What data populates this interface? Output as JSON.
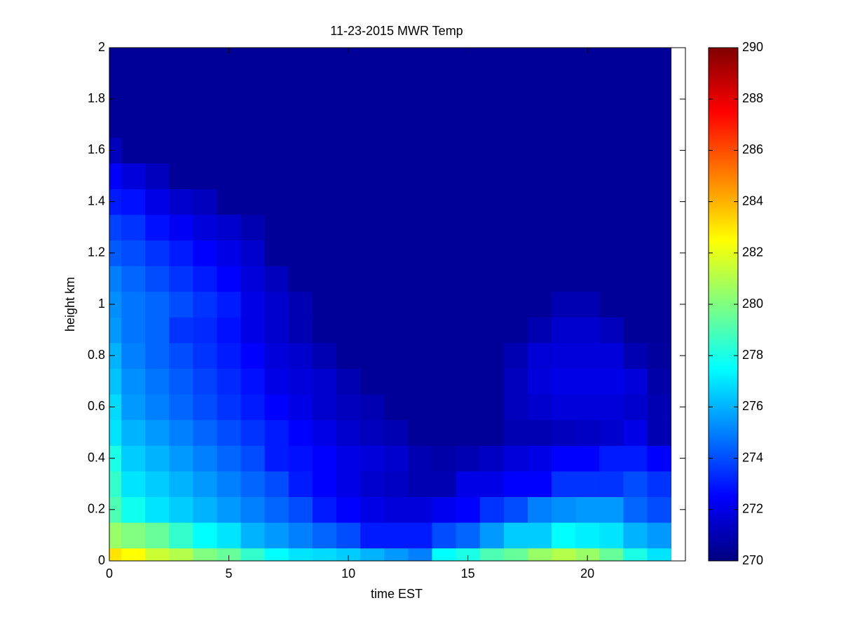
{
  "chart_data": {
    "type": "heatmap",
    "title": "11-23-2015 MWR Temp",
    "x_label": "time EST",
    "y_label": "height km",
    "colormap": "jet",
    "x": [
      0,
      1,
      2,
      3,
      4,
      5,
      6,
      7,
      8,
      9,
      10,
      11,
      12,
      13,
      14,
      15,
      16,
      17,
      18,
      19,
      20,
      21,
      22,
      23
    ],
    "y": [
      0,
      0.1,
      0.2,
      0.3,
      0.4,
      0.5,
      0.6,
      0.7,
      0.8,
      0.9,
      1.0,
      1.1,
      1.2,
      1.3,
      1.4,
      1.5,
      1.6,
      1.7,
      1.8,
      1.9,
      2.0
    ],
    "z": [
      [
        283,
        282.5,
        281.5,
        281,
        280,
        279.5,
        278.5,
        277.5,
        277,
        276.8,
        276.5,
        276,
        275.5,
        275,
        277.5,
        278,
        279,
        279.5,
        280.5,
        281,
        280.5,
        279.5,
        278,
        277
      ],
      [
        280.5,
        280,
        279.5,
        278.5,
        277.5,
        277,
        276,
        275.5,
        275,
        274.5,
        274,
        273,
        273,
        273,
        274,
        274.5,
        275.5,
        276.5,
        276.5,
        277.5,
        277.2,
        277,
        276,
        275.5
      ],
      [
        279,
        277.8,
        277,
        276.5,
        276,
        275.5,
        275,
        274.5,
        274,
        273,
        272.5,
        272,
        271.8,
        271.8,
        272.2,
        272.5,
        273.5,
        274,
        275,
        275.3,
        275.5,
        275.5,
        274.5,
        274
      ],
      [
        278.5,
        277,
        276.5,
        276,
        275.5,
        275,
        274.5,
        274,
        273,
        272.5,
        272,
        271.5,
        271.3,
        271,
        271,
        272,
        272,
        272.5,
        272.5,
        273.5,
        273.5,
        273.5,
        274,
        273.5
      ],
      [
        278,
        276.5,
        276,
        275.5,
        275,
        274.5,
        274,
        273,
        272.8,
        272.5,
        272,
        271.8,
        271.5,
        271,
        270.8,
        271,
        271.3,
        271.8,
        272,
        272.5,
        272.5,
        273,
        273,
        272.5
      ],
      [
        277,
        276,
        275.5,
        275,
        274.5,
        274,
        273.5,
        273,
        272.5,
        272,
        271.5,
        271.2,
        271,
        270.5,
        270.5,
        270.5,
        270.5,
        271,
        271,
        271.2,
        271.3,
        271.5,
        272,
        271
      ],
      [
        276.8,
        275.5,
        275,
        274.5,
        274,
        273.5,
        273,
        272.5,
        272,
        271.5,
        271.2,
        271,
        270.5,
        270.5,
        270.5,
        270.5,
        270.5,
        271.2,
        271.5,
        271.8,
        271.8,
        271.8,
        271.5,
        271
      ],
      [
        276.3,
        275.3,
        274.8,
        274.3,
        273.8,
        273.3,
        272.8,
        272,
        271.8,
        271.5,
        271,
        270.5,
        270.5,
        270.5,
        270.5,
        270.5,
        270.5,
        271.2,
        271.8,
        272,
        272,
        272,
        271.8,
        270.8
      ],
      [
        276,
        275,
        274.5,
        274,
        273.5,
        273,
        272.5,
        271.8,
        271.5,
        271,
        270.5,
        270.5,
        270.5,
        270.5,
        270.5,
        270.5,
        270.5,
        271,
        271.7,
        271.8,
        271.8,
        271.8,
        271,
        270.6
      ],
      [
        275.5,
        274.8,
        274.5,
        273.5,
        273.3,
        272.8,
        272,
        271.5,
        271,
        270.5,
        270.5,
        270.5,
        270.5,
        270.5,
        270.5,
        270.5,
        270.5,
        270.5,
        271,
        271.5,
        271.5,
        271.2,
        270.5,
        270.5
      ],
      [
        275.3,
        274.8,
        274.5,
        274,
        273.5,
        273,
        272,
        271.5,
        271,
        270.5,
        270.5,
        270.5,
        270.5,
        270.5,
        270.5,
        270.5,
        270.5,
        270.5,
        270.5,
        271,
        271,
        270.5,
        270.5,
        270.5
      ],
      [
        275,
        274.5,
        274,
        273.5,
        273,
        272.5,
        271.8,
        271.2,
        270.5,
        270.5,
        270.5,
        270.5,
        270.5,
        270.5,
        270.5,
        270.5,
        270.5,
        270.5,
        270.5,
        270.5,
        270.5,
        270.5,
        270.5,
        270.5
      ],
      [
        274.3,
        274,
        273.5,
        273,
        272.5,
        272,
        271.5,
        270.5,
        270.5,
        270.5,
        270.5,
        270.5,
        270.5,
        270.5,
        270.5,
        270.5,
        270.5,
        270.5,
        270.5,
        270.5,
        270.5,
        270.5,
        270.5,
        270.5
      ],
      [
        273.8,
        273.5,
        272.8,
        272.3,
        271.8,
        271.5,
        271,
        270.5,
        270.5,
        270.5,
        270.5,
        270.5,
        270.5,
        270.5,
        270.5,
        270.5,
        270.5,
        270.5,
        270.5,
        270.5,
        270.5,
        270.5,
        270.5,
        270.5
      ],
      [
        273,
        272.8,
        272,
        271.5,
        271.2,
        270.5,
        270.5,
        270.5,
        270.5,
        270.5,
        270.5,
        270.5,
        270.5,
        270.5,
        270.5,
        270.5,
        270.5,
        270.5,
        270.5,
        270.5,
        270.5,
        270.5,
        270.5,
        270.5
      ],
      [
        272.5,
        271.8,
        271.2,
        270.5,
        270.5,
        270.5,
        270.5,
        270.5,
        270.5,
        270.5,
        270.5,
        270.5,
        270.5,
        270.5,
        270.5,
        270.5,
        270.5,
        270.5,
        270.5,
        270.5,
        270.5,
        270.5,
        270.5,
        270.5
      ],
      [
        271.2,
        270.5,
        270.5,
        270.5,
        270.5,
        270.5,
        270.5,
        270.5,
        270.5,
        270.5,
        270.5,
        270.5,
        270.5,
        270.5,
        270.5,
        270.5,
        270.5,
        270.5,
        270.5,
        270.5,
        270.5,
        270.5,
        270.5,
        270.5
      ],
      [
        270.5,
        270.5,
        270.5,
        270.5,
        270.5,
        270.5,
        270.5,
        270.5,
        270.5,
        270.5,
        270.5,
        270.5,
        270.5,
        270.5,
        270.5,
        270.5,
        270.5,
        270.5,
        270.5,
        270.5,
        270.5,
        270.5,
        270.5,
        270.5
      ],
      [
        270.5,
        270.5,
        270.5,
        270.5,
        270.5,
        270.5,
        270.5,
        270.5,
        270.5,
        270.5,
        270.5,
        270.5,
        270.5,
        270.5,
        270.5,
        270.5,
        270.5,
        270.5,
        270.5,
        270.5,
        270.5,
        270.5,
        270.5,
        270.5
      ],
      [
        270.5,
        270.5,
        270.5,
        270.5,
        270.5,
        270.5,
        270.5,
        270.5,
        270.5,
        270.5,
        270.5,
        270.5,
        270.5,
        270.5,
        270.5,
        270.5,
        270.5,
        270.5,
        270.5,
        270.5,
        270.5,
        270.5,
        270.5,
        270.5
      ],
      [
        270.5,
        270.5,
        270.5,
        270.5,
        270.5,
        270.5,
        270.5,
        270.5,
        270.5,
        270.5,
        270.5,
        270.5,
        270.5,
        270.5,
        270.5,
        270.5,
        270.5,
        270.5,
        270.5,
        270.5,
        270.5,
        270.5,
        270.5,
        270.5
      ]
    ],
    "xlim": [
      0,
      24.1
    ],
    "xticks": [
      0,
      5,
      10,
      15,
      20
    ],
    "ylim": [
      0,
      2
    ],
    "yticks": [
      0,
      0.2,
      0.4,
      0.6,
      0.8,
      1,
      1.2,
      1.4,
      1.6,
      1.8,
      2
    ],
    "clim": [
      270,
      290
    ],
    "cticks": [
      270,
      272,
      274,
      276,
      278,
      280,
      282,
      284,
      286,
      288,
      290
    ]
  }
}
